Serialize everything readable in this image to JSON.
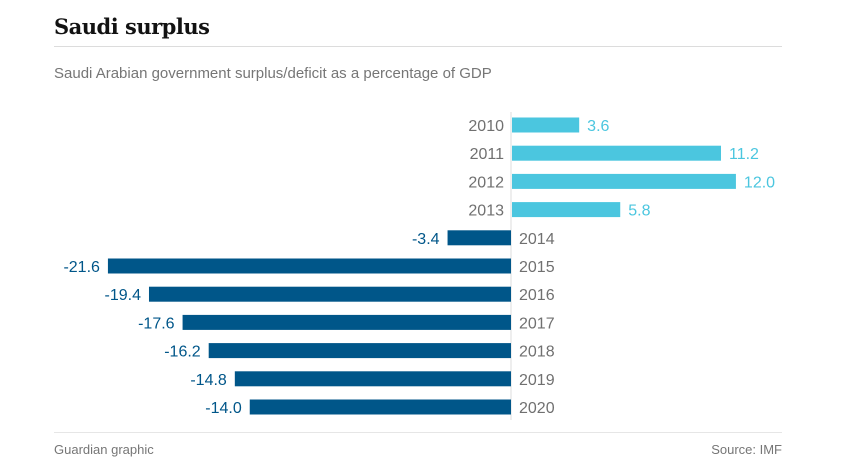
{
  "header": {
    "title": "Saudi surplus",
    "subtitle": "Saudi Arabian government surplus/deficit as a percentage of GDP"
  },
  "footer": {
    "credit": "Guardian graphic",
    "source": "Source: IMF"
  },
  "colors": {
    "positive": "#4bc6df",
    "negative": "#005689",
    "axis": "#dcdcdc"
  },
  "chart_data": {
    "type": "bar",
    "orientation": "horizontal",
    "title": "Saudi surplus",
    "subtitle": "Saudi Arabian government surplus/deficit as a percentage of GDP",
    "xlabel": "",
    "ylabel": "",
    "categories": [
      "2010",
      "2011",
      "2012",
      "2013",
      "2014",
      "2015",
      "2016",
      "2017",
      "2018",
      "2019",
      "2020"
    ],
    "values": [
      3.6,
      11.2,
      12.0,
      5.8,
      -3.4,
      -21.6,
      -19.4,
      -17.6,
      -16.2,
      -14.8,
      -14.0
    ],
    "value_labels": [
      "3.6",
      "11.2",
      "12.0",
      "5.8",
      "-3.4",
      "-21.6",
      "-19.4",
      "-17.6",
      "-16.2",
      "-14.8",
      "-14.0"
    ],
    "xlim": [
      -21.6,
      12.0
    ],
    "grid": false,
    "legend": "none",
    "source": "Source: IMF"
  }
}
